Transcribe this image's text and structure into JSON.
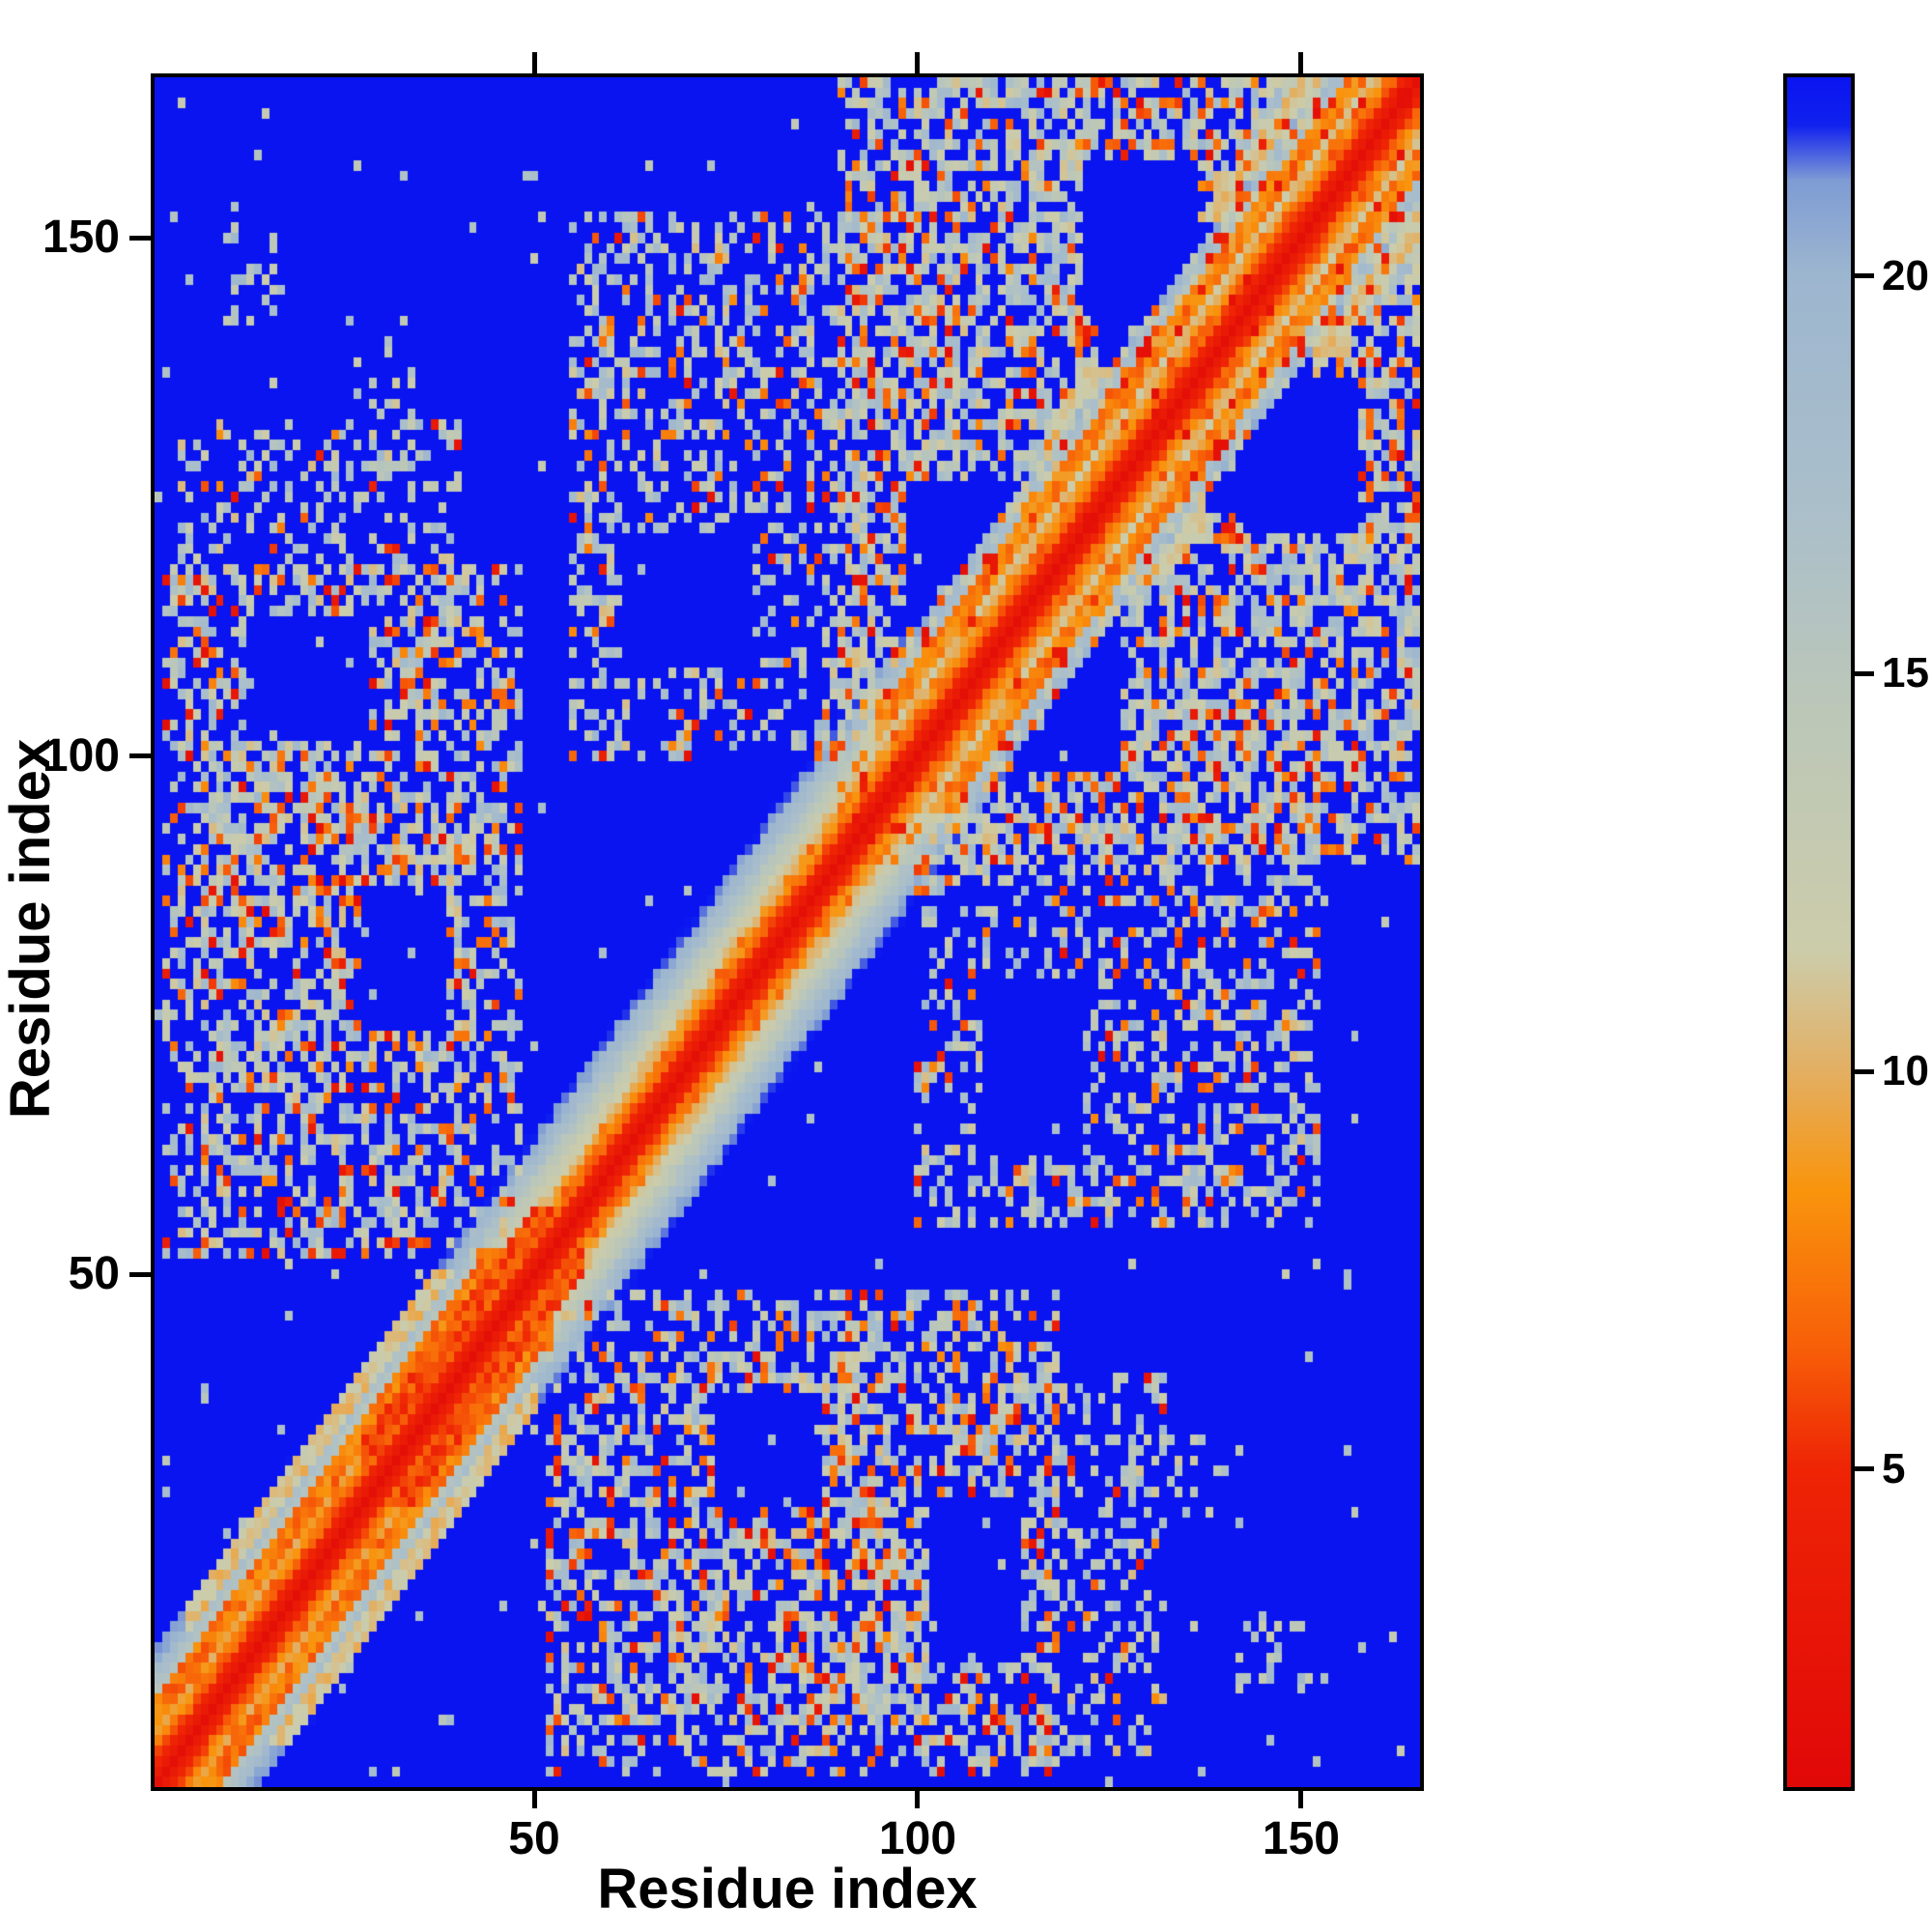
{
  "figure": {
    "background": "#ffffff",
    "axis_color": "#000000"
  },
  "chart_data": {
    "type": "heatmap",
    "title": "",
    "xlabel": "Residue index",
    "ylabel": "Residue index",
    "n_residues": 165,
    "x_range": [
      1,
      165
    ],
    "y_range": [
      1,
      165
    ],
    "x_ticks": [
      50,
      100,
      150
    ],
    "y_ticks": [
      50,
      100,
      150
    ],
    "grid": false,
    "legend": "none",
    "description": "Symmetric residue-residue distance matrix. A red band of short distances runs along the diagonal, flanked by orange/pale-sage/light-blue bands of increasing distance. Speckled off-diagonal contact clusters link the N-terminal segment (res ~1-48) with the central segment (res ~52-118), the N-terminus with res ~85-132, the central segment with res ~100-152, and a dense contact field with blue cavities spans residues ~90-165. Deep blue marks distances at or above the color cap.",
    "colorbar": {
      "orientation": "vertical",
      "position": "right",
      "vmin": 1,
      "vmax": 22.5,
      "ticks": [
        20,
        15,
        10,
        5
      ],
      "colormap_stops": [
        [
          1.0,
          "#e10808"
        ],
        [
          5.0,
          "#ee2405"
        ],
        [
          6.5,
          "#f75e08"
        ],
        [
          8.5,
          "#f9940c"
        ],
        [
          10.0,
          "#e3af62"
        ],
        [
          11.5,
          "#ccccaa"
        ],
        [
          14.5,
          "#bcc7b8"
        ],
        [
          17.0,
          "#abbfca"
        ],
        [
          20.0,
          "#9db6cf"
        ],
        [
          21.2,
          "#7f9cd4"
        ],
        [
          21.9,
          "#1021ee"
        ],
        [
          22.5,
          "#0a14f0"
        ]
      ]
    },
    "value_model": {
      "seed": 12345,
      "base_intercept": 2.0,
      "base_slope": 1.5,
      "band_noise": 1.6,
      "near_diag_dot_prob": 0.15,
      "background_speckle": 0.012,
      "stripes": [
        {
          "range": [
            1,
            52
          ],
          "offset": 7,
          "halfwidth": 1,
          "value": 7.5,
          "jitter": 3
        },
        {
          "range": [
            5,
            50
          ],
          "offset": 12,
          "halfwidth": 1,
          "value": 11,
          "jitter": 3
        },
        {
          "range": [
            28,
            56
          ],
          "offset": 5,
          "halfwidth": 1,
          "value": 6,
          "jitter": 2.5
        },
        {
          "range": [
            95,
            165
          ],
          "offset": 8,
          "halfwidth": 1,
          "value": 8,
          "jitter": 3
        },
        {
          "range": [
            118,
            165
          ],
          "offset": 14,
          "halfwidth": 1,
          "value": 11,
          "jitter": 3
        }
      ],
      "clusters": [
        {
          "rows": [
            2,
            48
          ],
          "cols": [
            52,
            118
          ],
          "fill": 0.38,
          "orange": 0.14,
          "red": 0.05
        },
        {
          "rows": [
            8,
            40
          ],
          "cols": [
            55,
            95
          ],
          "fill": 0.25,
          "orange": 0.15,
          "red": 0.05
        },
        {
          "rows": [
            4,
            40
          ],
          "cols": [
            85,
            132
          ],
          "fill": 0.28,
          "orange": 0.12,
          "red": 0.04
        },
        {
          "rows": [
            55,
            108
          ],
          "cols": [
            100,
            152
          ],
          "fill": 0.36,
          "orange": 0.13,
          "red": 0.04
        },
        {
          "rows": [
            90,
            165
          ],
          "cols": [
            90,
            165
          ],
          "fill": 0.52,
          "orange": 0.12,
          "red": 0.04
        },
        {
          "rows": [
            112,
            165
          ],
          "cols": [
            112,
            165
          ],
          "fill": 0.25,
          "orange": 0.12,
          "red": 0.04
        },
        {
          "rows": [
            26,
            34
          ],
          "cols": [
            128,
            142
          ],
          "fill": 0.18,
          "orange": 0.1,
          "red": 0.0
        },
        {
          "rows": [
            10,
            18
          ],
          "cols": [
            142,
            150
          ],
          "fill": 0.15,
          "orange": 0.0,
          "red": 0.0
        }
      ],
      "holes": [
        {
          "rows": [
            99,
            114
          ],
          "cols": [
            113,
            126
          ]
        },
        {
          "rows": [
            138,
            151
          ],
          "cols": [
            124,
            139
          ]
        },
        {
          "rows": [
            122,
            136
          ],
          "cols": [
            143,
            157
          ]
        },
        {
          "rows": [
            28,
            38
          ],
          "cols": [
            74,
            87
          ]
        },
        {
          "rows": [
            109,
            121
          ],
          "cols": [
            62,
            78
          ]
        },
        {
          "rows": [
            102,
            113
          ],
          "cols": [
            13,
            28
          ]
        }
      ]
    }
  }
}
